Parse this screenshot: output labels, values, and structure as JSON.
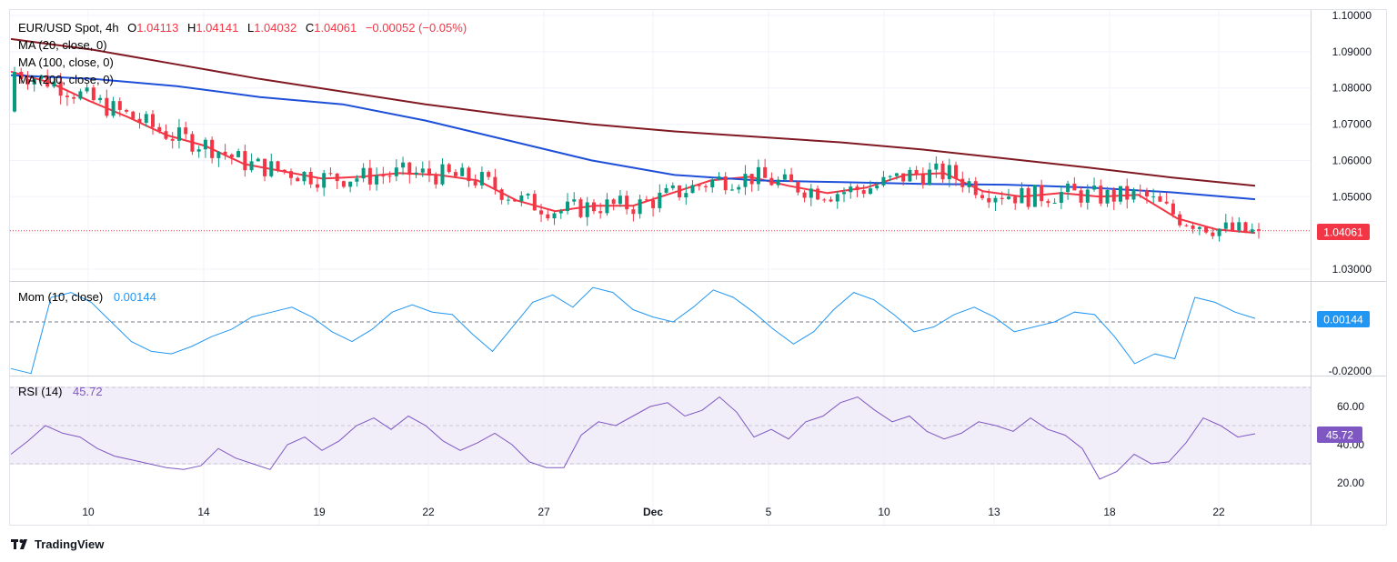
{
  "header": {
    "symbol": "EUR/USD Spot, 4h",
    "o_label": "O",
    "o_value": "1.04113",
    "h_label": "H",
    "h_value": "1.04141",
    "l_label": "L",
    "l_value": "1.04032",
    "c_label": "C",
    "c_value": "1.04061",
    "change": "−0.00052 (−0.05%)"
  },
  "indicators": {
    "ma20": "MA (20, close, 0)",
    "ma100": "MA (100, close, 0)",
    "ma200": "MA (200, close, 0)",
    "mom_label": "Mom (10, close)",
    "mom_value": "0.00144",
    "rsi_label": "RSI (14)",
    "rsi_value": "45.72"
  },
  "price_tag": "1.04061",
  "mom_tag": "0.00144",
  "rsi_tag": "45.72",
  "brand": "TradingView",
  "colors": {
    "up": "#089981",
    "down": "#f23645",
    "ma20": "#f23645",
    "ma100": "#1e4fd8",
    "ma200": "#801922",
    "momentum": "#2196f3",
    "rsi": "#7e57c2",
    "rsi_band": "#ede7f6"
  },
  "chart_data": [
    {
      "type": "candlestick",
      "title": "EUR/USD Spot, 4h",
      "x_tick_labels": [
        "10",
        "14",
        "19",
        "22",
        "27",
        "Dec",
        "5",
        "10",
        "13",
        "18",
        "22"
      ],
      "y_tick_labels": [
        "1.10000",
        "1.09000",
        "1.08000",
        "1.07000",
        "1.06000",
        "1.05000",
        "1.03000"
      ],
      "ylim": [
        1.028,
        1.1
      ],
      "current_price": 1.04061,
      "series": [
        {
          "name": "MA (20, close, 0)",
          "values": [
            1.0845,
            1.0815,
            1.0765,
            1.072,
            1.067,
            1.064,
            1.059,
            1.057,
            1.055,
            1.0555,
            1.0565,
            1.056,
            1.0545,
            1.049,
            1.046,
            1.0475,
            1.0475,
            1.051,
            1.0545,
            1.0555,
            1.053,
            1.051,
            1.0525,
            1.056,
            1.0565,
            1.0515,
            1.05,
            1.051,
            1.05,
            1.0505,
            1.044,
            1.041,
            1.04
          ]
        },
        {
          "name": "MA (100, close, 0)",
          "values": [
            1.0835,
            1.0825,
            1.0805,
            1.0775,
            1.0755,
            1.071,
            1.0655,
            1.06,
            1.056,
            1.0545,
            1.054,
            1.0535,
            1.0533,
            1.0525,
            1.0512,
            1.0493
          ]
        },
        {
          "name": "MA (200, close, 0)",
          "values": [
            1.0935,
            1.0905,
            1.0865,
            1.0825,
            1.079,
            1.0755,
            1.0725,
            1.07,
            1.068,
            1.0665,
            1.065,
            1.063,
            1.0605,
            1.058,
            1.0553,
            1.053
          ]
        }
      ]
    },
    {
      "type": "line",
      "title": "Mom (10, close)",
      "y_tick_labels": [
        "-0.02000"
      ],
      "last_value": 0.00144,
      "series": [
        {
          "name": "Mom (10, close)",
          "values": [
            -0.019,
            -0.021,
            0.01,
            0.012,
            0.008,
            0.0,
            -0.008,
            -0.012,
            -0.013,
            -0.01,
            -0.006,
            -0.003,
            0.002,
            0.004,
            0.006,
            0.002,
            -0.004,
            -0.008,
            -0.003,
            0.004,
            0.007,
            0.004,
            0.003,
            -0.005,
            -0.012,
            -0.002,
            0.008,
            0.011,
            0.006,
            0.014,
            0.012,
            0.005,
            0.002,
            0.0,
            0.006,
            0.013,
            0.01,
            0.004,
            -0.003,
            -0.009,
            -0.004,
            0.005,
            0.012,
            0.009,
            0.003,
            -0.004,
            -0.002,
            0.003,
            0.006,
            0.002,
            -0.004,
            -0.002,
            0.0,
            0.004,
            0.003,
            -0.006,
            -0.017,
            -0.013,
            -0.015,
            0.01,
            0.008,
            0.004,
            0.00144
          ]
        }
      ]
    },
    {
      "type": "line",
      "title": "RSI (14)",
      "y_tick_labels": [
        "60.00",
        "40.00",
        "20.00"
      ],
      "levels": [
        70,
        50,
        30
      ],
      "last_value": 45.72,
      "series": [
        {
          "name": "RSI (14)",
          "values": [
            35,
            42,
            50,
            46,
            44,
            38,
            34,
            32,
            30,
            28,
            27,
            29,
            38,
            33,
            30,
            27,
            40,
            44,
            37,
            42,
            50,
            54,
            48,
            55,
            50,
            42,
            37,
            41,
            46,
            40,
            31,
            28,
            28,
            45,
            52,
            50,
            55,
            60,
            62,
            55,
            58,
            65,
            57,
            44,
            48,
            43,
            52,
            55,
            62,
            65,
            58,
            52,
            55,
            47,
            43,
            46,
            52,
            50,
            47,
            54,
            48,
            45,
            38,
            22,
            26,
            35,
            30,
            31,
            41,
            54,
            50,
            44,
            45.72
          ]
        }
      ]
    }
  ]
}
